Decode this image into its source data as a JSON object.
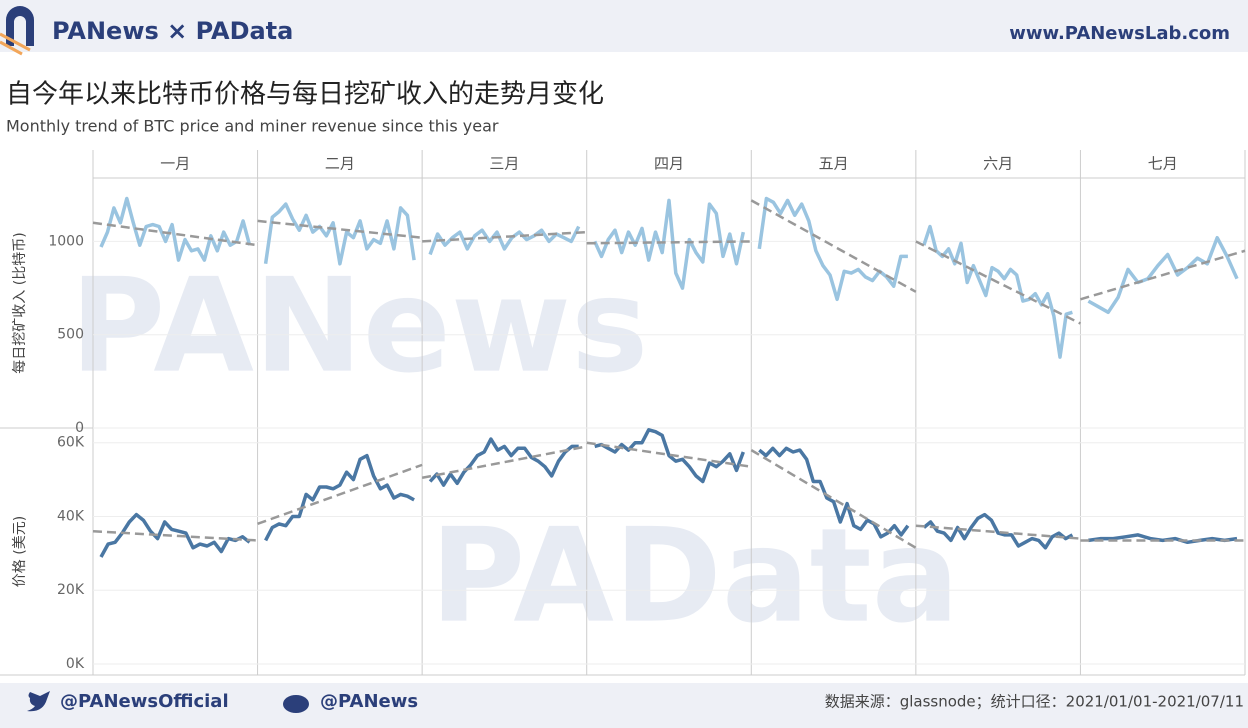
{
  "header": {
    "brand": "PANews × PAData",
    "site": "www.PANewsLab.com"
  },
  "chart_data": {
    "type": "line",
    "title": "自今年以来比特币价格与每日挖矿收入的走势月变化",
    "subtitle": "Monthly trend of BTC price and miner revenue since this year",
    "facets": [
      "一月",
      "二月",
      "三月",
      "四月",
      "五月",
      "六月",
      "七月"
    ],
    "panels": [
      {
        "y_label": "每日挖矿收入 (比特币)",
        "color": "#9ac4e0",
        "ylim": [
          0,
          1340
        ],
        "yticks": [
          0,
          500,
          1000
        ],
        "months": [
          {
            "values": [
              970,
              1050,
              1180,
              1100,
              1230,
              1100,
              980,
              1080,
              1090,
              1080,
              1000,
              1090,
              900,
              1010,
              950,
              960,
              900,
              1030,
              950,
              1050,
              980,
              1000,
              1110,
              980
            ],
            "trend": [
              1100,
              980
            ]
          },
          {
            "values": [
              880,
              1130,
              1160,
              1200,
              1120,
              1060,
              1140,
              1050,
              1080,
              1030,
              1100,
              880,
              1050,
              1020,
              1110,
              960,
              1010,
              990,
              1110,
              960,
              1180,
              1140,
              900
            ],
            "trend": [
              1110,
              1020
            ]
          },
          {
            "values": [
              930,
              1040,
              980,
              1020,
              1050,
              960,
              1030,
              1060,
              1000,
              1050,
              960,
              1020,
              1050,
              1010,
              1030,
              1060,
              1000,
              1040,
              1020,
              1000,
              1080
            ],
            "trend": [
              1000,
              1050
            ]
          },
          {
            "values": [
              1000,
              920,
              1010,
              1060,
              940,
              1050,
              980,
              1070,
              900,
              1050,
              940,
              1220,
              830,
              750,
              1010,
              940,
              890,
              1200,
              1150,
              920,
              1040,
              880,
              1050
            ],
            "trend": [
              990,
              1000
            ]
          },
          {
            "values": [
              960,
              1230,
              1210,
              1150,
              1220,
              1140,
              1200,
              1110,
              950,
              870,
              820,
              690,
              840,
              830,
              850,
              810,
              790,
              840,
              810,
              760,
              920,
              920
            ],
            "trend": [
              1220,
              730
            ]
          },
          {
            "values": [
              980,
              1080,
              950,
              920,
              960,
              880,
              990,
              780,
              870,
              790,
              710,
              860,
              840,
              800,
              850,
              820,
              680,
              690,
              720,
              660,
              720,
              600,
              380,
              610,
              620
            ],
            "trend": [
              1000,
              560
            ]
          },
          {
            "values": [
              680,
              650,
              620,
              700,
              850,
              780,
              800,
              870,
              930,
              820,
              860,
              910,
              880,
              1020,
              920,
              800
            ],
            "trend": [
              690,
              950
            ]
          }
        ]
      },
      {
        "y_label": "价格 (美元)",
        "color": "#4a77a3",
        "ylim": [
          -3000,
          64000
        ],
        "yticks": [
          {
            "value": 0,
            "label": "0K"
          },
          {
            "value": 20000,
            "label": "20K"
          },
          {
            "value": 40000,
            "label": "40K"
          },
          {
            "value": 60000,
            "label": "60K"
          }
        ],
        "months": [
          {
            "values": [
              29000,
              32500,
              33000,
              35500,
              38500,
              40500,
              39000,
              36000,
              34000,
              38500,
              36500,
              36000,
              35500,
              31500,
              32500,
              32000,
              33000,
              30500,
              34000,
              33500,
              34500,
              33000
            ],
            "trend": [
              36000,
              33500
            ]
          },
          {
            "values": [
              33500,
              37000,
              38000,
              37500,
              40000,
              40000,
              46000,
              44500,
              48000,
              48000,
              47500,
              48500,
              52000,
              50000,
              55500,
              56500,
              51000,
              47500,
              48500,
              45000,
              46000,
              45500,
              44500
            ],
            "trend": [
              38000,
              54000
            ]
          },
          {
            "values": [
              49500,
              51500,
              48500,
              51500,
              49000,
              52000,
              54000,
              56500,
              57500,
              61000,
              58000,
              59000,
              56500,
              58500,
              58500,
              56000,
              55000,
              53500,
              51000,
              55000,
              57500,
              59000,
              59000
            ],
            "trend": [
              50500,
              59000
            ]
          },
          {
            "values": [
              59000,
              59500,
              58500,
              57500,
              59500,
              58000,
              60000,
              60000,
              63500,
              63000,
              62000,
              56500,
              55000,
              55500,
              53500,
              51000,
              49500,
              54500,
              53500,
              55000,
              57000,
              52500,
              57500
            ],
            "trend": [
              60000,
              53500
            ]
          },
          {
            "values": [
              58000,
              56500,
              58500,
              56500,
              58500,
              57500,
              58000,
              55500,
              49500,
              49500,
              45000,
              44000,
              38500,
              43500,
              37500,
              36500,
              39000,
              38000,
              34500,
              35500,
              37500,
              35000,
              37500
            ],
            "trend": [
              58000,
              31500
            ]
          },
          {
            "values": [
              37000,
              38500,
              36000,
              35500,
              33500,
              37000,
              34000,
              37000,
              39500,
              40500,
              39000,
              35500,
              35000,
              35000,
              32000,
              33000,
              34000,
              33500,
              31500,
              34500,
              35500,
              34000,
              35000
            ],
            "trend": [
              37500,
              34000
            ]
          },
          {
            "values": [
              33500,
              34000,
              34000,
              34500,
              35000,
              34000,
              33500,
              34000,
              33000,
              33500,
              34000,
              33500,
              34000
            ],
            "trend": [
              33500,
              33500
            ]
          }
        ]
      }
    ]
  },
  "watermarks": [
    "PANews",
    "PAData"
  ],
  "footer": {
    "twitter": "@PANewsOfficial",
    "weibo": "@PANews",
    "source": "数据来源：glassnode；统计口径：2021/01/01-2021/07/11"
  }
}
